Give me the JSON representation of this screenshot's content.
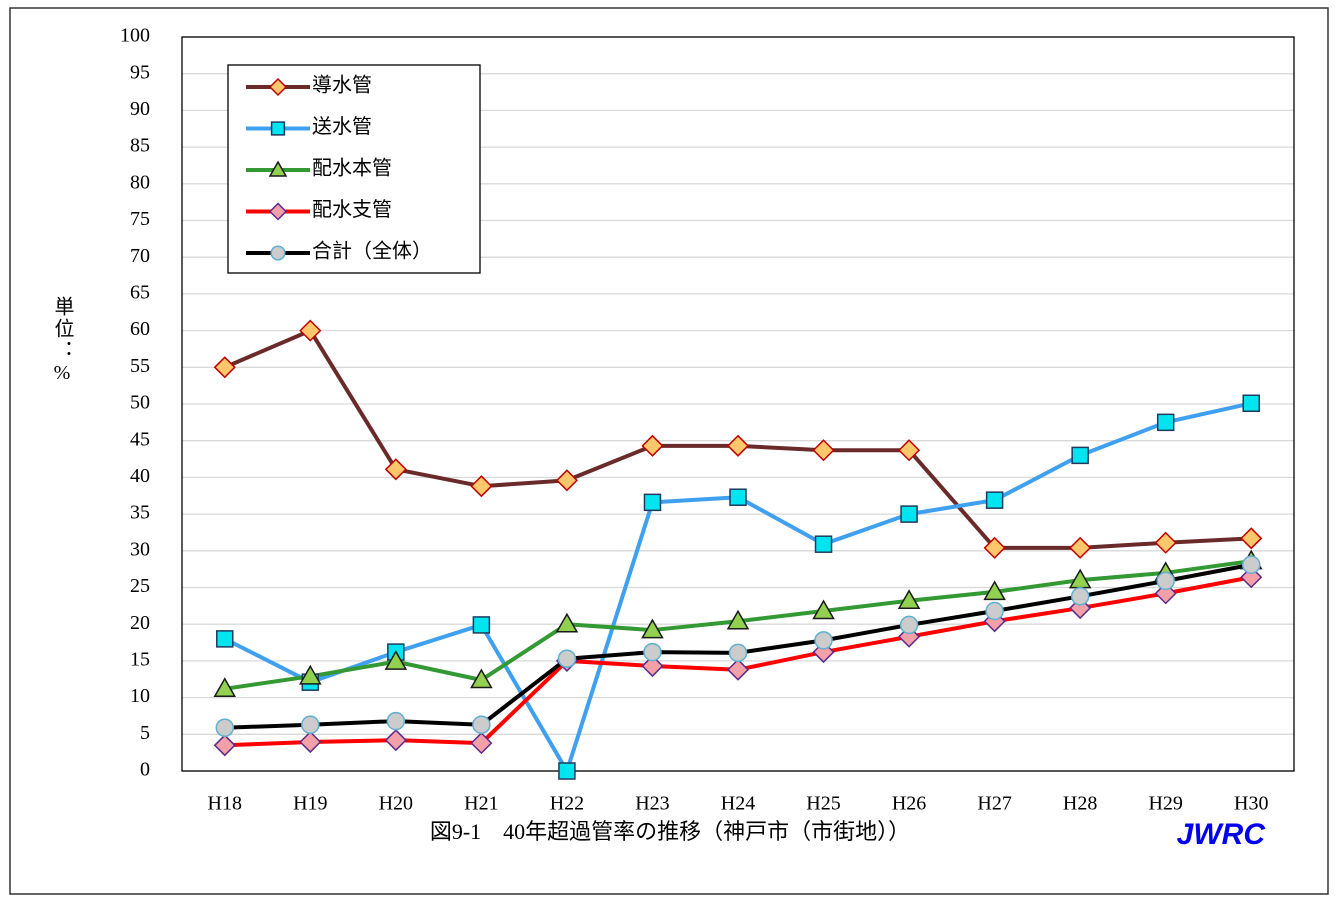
{
  "chart_data": {
    "type": "line",
    "title": "図9-1　40年超過管率の推移（神戸市（市街地））",
    "logo": "JWRC",
    "ylabel": "単位：%",
    "categories": [
      "H18",
      "H19",
      "H20",
      "H21",
      "H22",
      "H23",
      "H24",
      "H25",
      "H26",
      "H27",
      "H28",
      "H29",
      "H30"
    ],
    "ylim": [
      0,
      100
    ],
    "yticks": [
      0,
      5,
      10,
      15,
      20,
      25,
      30,
      35,
      40,
      45,
      50,
      55,
      60,
      65,
      70,
      75,
      80,
      85,
      90,
      95,
      100
    ],
    "grid": true,
    "legend": "upper left",
    "series": [
      {
        "name": "導水管",
        "color": "#6b2a2a",
        "marker": "diamond",
        "marker_fill": "#ffc76b",
        "marker_stroke": "#c00000",
        "values": [
          55,
          60,
          41.1,
          38.8,
          39.6,
          44.3,
          44.3,
          43.7,
          43.7,
          30.4,
          30.4,
          31.1,
          31.7
        ]
      },
      {
        "name": "送水管",
        "color": "#3fa0f0",
        "marker": "square",
        "marker_fill": "#00e5f0",
        "marker_stroke": "#1f3a5f",
        "values": [
          18,
          12.1,
          16.2,
          19.9,
          0,
          36.6,
          37.3,
          30.9,
          35,
          36.9,
          43,
          47.5,
          50.1
        ]
      },
      {
        "name": "配水本管",
        "color": "#339933",
        "marker": "triangle",
        "marker_fill": "#92d050",
        "marker_stroke": "#1a1a1a",
        "values": [
          11.2,
          12.9,
          14.9,
          12.4,
          20,
          19.2,
          20.4,
          21.8,
          23.2,
          24.4,
          26,
          27,
          28.6
        ]
      },
      {
        "name": "配水支管",
        "color": "#ff0000",
        "marker": "diamond",
        "marker_fill": "#f4a0a8",
        "marker_stroke": "#5a2a8a",
        "values": [
          3.5,
          3.95,
          4.2,
          3.8,
          15,
          14.3,
          13.8,
          16.2,
          18.3,
          20.4,
          22.2,
          24.2,
          26.4
        ]
      },
      {
        "name": "合計（全体）",
        "color": "#000000",
        "marker": "circle",
        "marker_fill": "#cccccc",
        "marker_stroke": "#5fb0d0",
        "values": [
          5.9,
          6.3,
          6.8,
          6.3,
          15.3,
          16.2,
          16.1,
          17.8,
          19.9,
          21.8,
          23.8,
          25.9,
          28.1
        ]
      }
    ]
  }
}
